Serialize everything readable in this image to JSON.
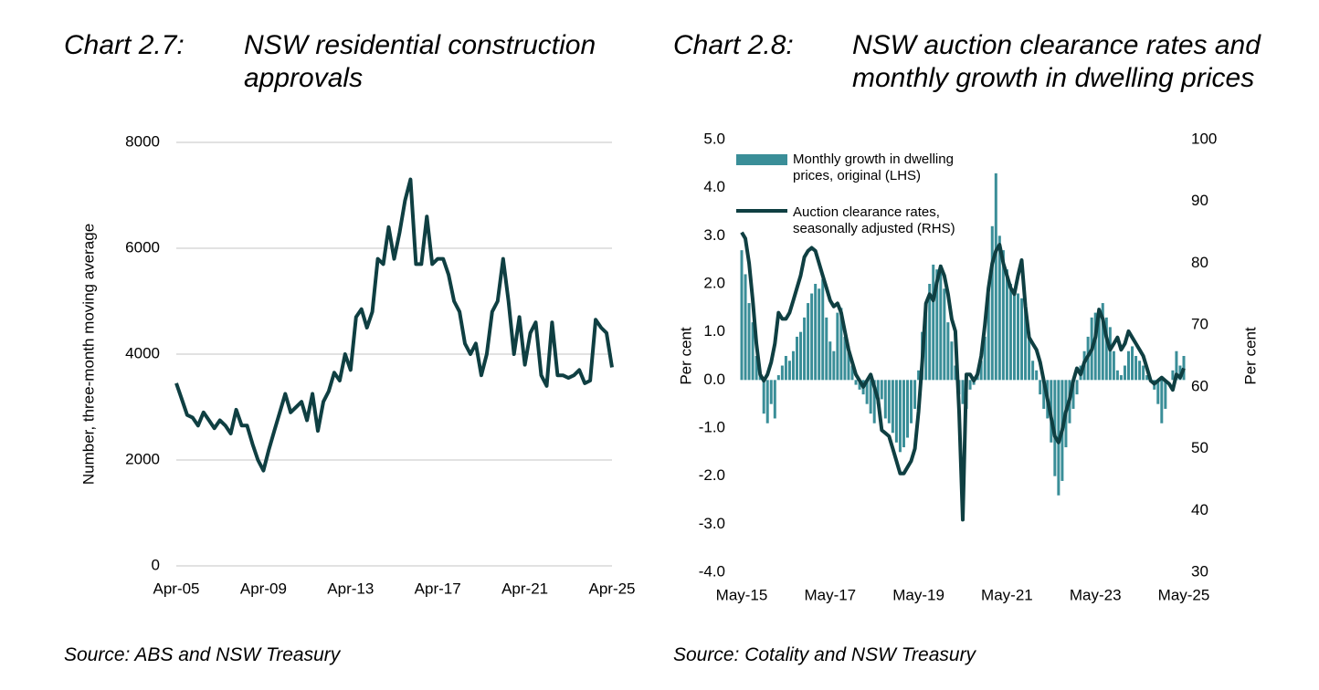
{
  "chart_data": [
    {
      "type": "line",
      "label": "Chart 2.7:",
      "title": "NSW residential construction approvals",
      "source": "Source: ABS and NSW Treasury",
      "y_label": "Number, three-month moving average",
      "x": [
        "2005-04",
        "2005-07",
        "2005-10",
        "2006-01",
        "2006-04",
        "2006-07",
        "2006-10",
        "2007-01",
        "2007-04",
        "2007-07",
        "2007-10",
        "2008-01",
        "2008-04",
        "2008-07",
        "2008-10",
        "2009-01",
        "2009-04",
        "2009-07",
        "2009-10",
        "2010-01",
        "2010-04",
        "2010-07",
        "2010-10",
        "2011-01",
        "2011-04",
        "2011-07",
        "2011-10",
        "2012-01",
        "2012-04",
        "2012-07",
        "2012-10",
        "2013-01",
        "2013-04",
        "2013-07",
        "2013-10",
        "2014-01",
        "2014-04",
        "2014-07",
        "2014-10",
        "2015-01",
        "2015-04",
        "2015-07",
        "2015-10",
        "2016-01",
        "2016-04",
        "2016-07",
        "2016-10",
        "2017-01",
        "2017-04",
        "2017-07",
        "2017-10",
        "2018-01",
        "2018-04",
        "2018-07",
        "2018-10",
        "2019-01",
        "2019-04",
        "2019-07",
        "2019-10",
        "2020-01",
        "2020-04",
        "2020-07",
        "2020-10",
        "2021-01",
        "2021-04",
        "2021-07",
        "2021-10",
        "2022-01",
        "2022-04",
        "2022-07",
        "2022-10",
        "2023-01",
        "2023-04",
        "2023-07",
        "2023-10",
        "2024-01",
        "2024-04",
        "2024-07",
        "2024-10",
        "2025-01",
        "2025-04"
      ],
      "series": [
        {
          "name": "NSW residential construction approvals",
          "color": "#0f3f42",
          "values": [
            3450,
            3150,
            2850,
            2800,
            2650,
            2900,
            2750,
            2600,
            2750,
            2650,
            2500,
            2950,
            2650,
            2650,
            2300,
            2000,
            1800,
            2200,
            2550,
            2900,
            3250,
            2900,
            3000,
            3100,
            2750,
            3250,
            2550,
            3100,
            3300,
            3650,
            3500,
            4000,
            3700,
            4700,
            4850,
            4500,
            4800,
            5800,
            5700,
            6400,
            5800,
            6300,
            6900,
            7300,
            5700,
            5700,
            6600,
            5700,
            5800,
            5800,
            5500,
            5000,
            4800,
            4200,
            4000,
            4200,
            3600,
            4000,
            4800,
            5000,
            5800,
            5000,
            4000,
            4700,
            3800,
            4400,
            4600,
            3600,
            3400,
            4600,
            3600,
            3600,
            3550,
            3600,
            3700,
            3450,
            3500,
            4650,
            4500,
            4400,
            3750
          ]
        }
      ],
      "xlim": [
        "2005-04",
        "2025-04"
      ],
      "xticks": [
        {
          "value": "2005-04",
          "label": "Apr-05"
        },
        {
          "value": "2009-04",
          "label": "Apr-09"
        },
        {
          "value": "2013-04",
          "label": "Apr-13"
        },
        {
          "value": "2017-04",
          "label": "Apr-17"
        },
        {
          "value": "2021-04",
          "label": "Apr-21"
        },
        {
          "value": "2025-04",
          "label": "Apr-25"
        }
      ],
      "ylim": [
        0,
        8000
      ],
      "yticks": [
        0,
        2000,
        4000,
        6000,
        8000
      ],
      "grid": true
    },
    {
      "type": "combo",
      "label": "Chart 2.8:",
      "title": "NSW auction clearance rates and monthly growth in dwelling prices",
      "source": "Source: Cotality and NSW Treasury",
      "y_label": "Per cent",
      "y2_label": "Per cent",
      "x": [
        "2015-05",
        "2015-06",
        "2015-07",
        "2015-08",
        "2015-09",
        "2015-10",
        "2015-11",
        "2015-12",
        "2016-01",
        "2016-02",
        "2016-03",
        "2016-04",
        "2016-05",
        "2016-06",
        "2016-07",
        "2016-08",
        "2016-09",
        "2016-10",
        "2016-11",
        "2016-12",
        "2017-01",
        "2017-02",
        "2017-03",
        "2017-04",
        "2017-05",
        "2017-06",
        "2017-07",
        "2017-08",
        "2017-09",
        "2017-10",
        "2017-11",
        "2017-12",
        "2018-01",
        "2018-02",
        "2018-03",
        "2018-04",
        "2018-05",
        "2018-06",
        "2018-07",
        "2018-08",
        "2018-09",
        "2018-10",
        "2018-11",
        "2018-12",
        "2019-01",
        "2019-02",
        "2019-03",
        "2019-04",
        "2019-05",
        "2019-06",
        "2019-07",
        "2019-08",
        "2019-09",
        "2019-10",
        "2019-11",
        "2019-12",
        "2020-01",
        "2020-02",
        "2020-03",
        "2020-04",
        "2020-05",
        "2020-06",
        "2020-07",
        "2020-08",
        "2020-09",
        "2020-10",
        "2020-11",
        "2020-12",
        "2021-01",
        "2021-02",
        "2021-03",
        "2021-04",
        "2021-05",
        "2021-06",
        "2021-07",
        "2021-08",
        "2021-09",
        "2021-10",
        "2021-11",
        "2021-12",
        "2022-01",
        "2022-02",
        "2022-03",
        "2022-04",
        "2022-05",
        "2022-06",
        "2022-07",
        "2022-08",
        "2022-09",
        "2022-10",
        "2022-11",
        "2022-12",
        "2023-01",
        "2023-02",
        "2023-03",
        "2023-04",
        "2023-05",
        "2023-06",
        "2023-07",
        "2023-08",
        "2023-09",
        "2023-10",
        "2023-11",
        "2023-12",
        "2024-01",
        "2024-02",
        "2024-03",
        "2024-04",
        "2024-05",
        "2024-06",
        "2024-07",
        "2024-08",
        "2024-09",
        "2024-10",
        "2024-11",
        "2024-12",
        "2025-01",
        "2025-02",
        "2025-03",
        "2025-04",
        "2025-05"
      ],
      "series": [
        {
          "name": "Monthly growth in dwelling prices, original (LHS)",
          "type": "bar",
          "color": "#3a8e98",
          "values": [
            2.7,
            2.2,
            1.6,
            1.2,
            0.5,
            0.1,
            -0.7,
            -0.9,
            -0.5,
            -0.8,
            0.1,
            0.3,
            0.5,
            0.4,
            0.6,
            0.9,
            1.0,
            1.3,
            1.6,
            1.8,
            2.0,
            1.9,
            2.1,
            1.3,
            0.8,
            0.6,
            1.4,
            1.5,
            0.9,
            0.7,
            0.3,
            -0.1,
            -0.2,
            -0.3,
            -0.5,
            -0.7,
            -0.9,
            -0.5,
            -0.4,
            -0.8,
            -0.9,
            -1.1,
            -1.3,
            -1.5,
            -1.4,
            -1.2,
            -0.9,
            -0.6,
            0.2,
            1.0,
            1.6,
            2.0,
            2.4,
            2.3,
            2.4,
            1.9,
            1.2,
            0.8,
            0.3,
            -0.3,
            -0.5,
            -0.6,
            -0.2,
            -0.1,
            0.1,
            0.4,
            0.9,
            1.8,
            3.2,
            4.3,
            3.0,
            2.7,
            2.3,
            2.0,
            1.9,
            1.8,
            1.7,
            1.5,
            1.0,
            0.4,
            0.2,
            -0.3,
            -0.6,
            -0.8,
            -1.3,
            -2.0,
            -2.4,
            -2.1,
            -1.4,
            -0.9,
            -0.6,
            -0.3,
            0.3,
            0.6,
            0.9,
            1.3,
            1.4,
            1.5,
            1.6,
            1.3,
            1.1,
            0.6,
            0.2,
            0.1,
            0.3,
            0.6,
            0.7,
            0.5,
            0.4,
            0.3,
            0.1,
            0.0,
            -0.2,
            -0.5,
            -0.9,
            -0.6,
            0.0,
            0.2,
            0.6,
            0.3,
            0.5
          ]
        },
        {
          "name": "Auction clearance rates, seasonally adjusted (RHS)",
          "type": "line",
          "axis": "y2",
          "color": "#0f3f42",
          "values": [
            85,
            84,
            80,
            74,
            67,
            62,
            61,
            62,
            64,
            67,
            72,
            71,
            71,
            72,
            74,
            76,
            78,
            81,
            82,
            82.5,
            82,
            80,
            78,
            76,
            74,
            73,
            73.5,
            72,
            69,
            66,
            64,
            62,
            61,
            60,
            61,
            62,
            60,
            58,
            53,
            52.5,
            52,
            50,
            48,
            46,
            46,
            47,
            48,
            50,
            56,
            64,
            73.5,
            75,
            74,
            77,
            79.5,
            78,
            75,
            71,
            69,
            56,
            38.5,
            62,
            62,
            61,
            62,
            65,
            70,
            76,
            80,
            82,
            83,
            80,
            78,
            76,
            75,
            78,
            80.5,
            73,
            68,
            67,
            66,
            64,
            61,
            58,
            55,
            52,
            51,
            53,
            56,
            58,
            61,
            63,
            62,
            64,
            65,
            66,
            68,
            72.5,
            71,
            68,
            66,
            67,
            68,
            66,
            67,
            69,
            68,
            67,
            66,
            65,
            63,
            61,
            60.5,
            61,
            61.5,
            61,
            60.5,
            59.5,
            62,
            61.5,
            63
          ]
        }
      ],
      "xlim": [
        "2015-05",
        "2025-05"
      ],
      "xticks": [
        {
          "value": "2015-05",
          "label": "May-15"
        },
        {
          "value": "2017-05",
          "label": "May-17"
        },
        {
          "value": "2019-05",
          "label": "May-19"
        },
        {
          "value": "2021-05",
          "label": "May-21"
        },
        {
          "value": "2023-05",
          "label": "May-23"
        },
        {
          "value": "2025-05",
          "label": "May-25"
        }
      ],
      "ylim": [
        -4,
        5
      ],
      "yticks": [
        {
          "value": -4,
          "label": "-4.0"
        },
        {
          "value": -3,
          "label": "-3.0"
        },
        {
          "value": -2,
          "label": "-2.0"
        },
        {
          "value": -1,
          "label": "-1.0"
        },
        {
          "value": 0,
          "label": "0.0"
        },
        {
          "value": 1,
          "label": "1.0"
        },
        {
          "value": 2,
          "label": "2.0"
        },
        {
          "value": 3,
          "label": "3.0"
        },
        {
          "value": 4,
          "label": "4.0"
        },
        {
          "value": 5,
          "label": "5.0"
        }
      ],
      "y2lim": [
        30,
        100
      ],
      "y2ticks": [
        30,
        40,
        50,
        60,
        70,
        80,
        90,
        100
      ],
      "grid": false,
      "legend": "upper left"
    }
  ]
}
